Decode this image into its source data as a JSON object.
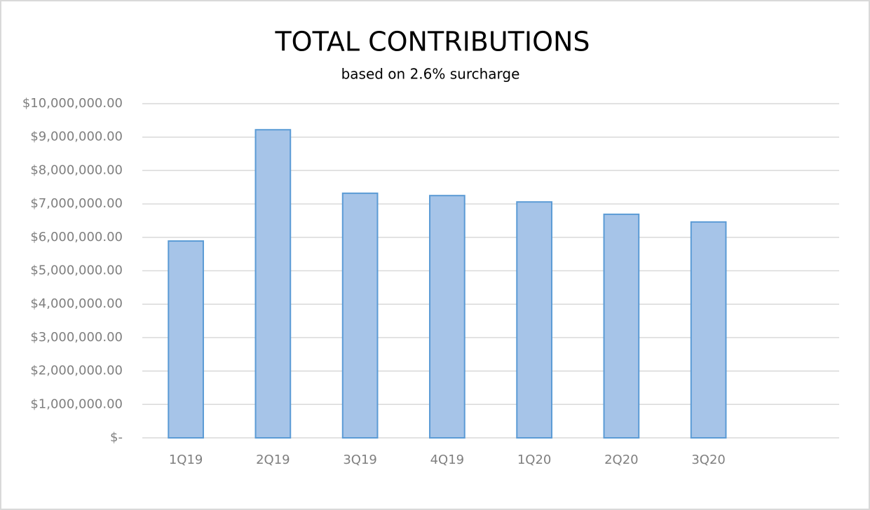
{
  "chart_data": {
    "type": "bar",
    "title": "TOTAL CONTRIBUTIONS",
    "subtitle": "based on 2.6% surcharge",
    "categories": [
      "1Q19",
      "2Q19",
      "3Q19",
      "4Q19",
      "1Q20",
      "2Q20",
      "3Q20",
      null
    ],
    "values": [
      5890000,
      9220000,
      7320000,
      7250000,
      7060000,
      6690000,
      6460000,
      null
    ],
    "color": "#a6c4e8",
    "edgecolor": "#5b9bd5",
    "ylim": [
      0,
      10000000
    ],
    "yticks": [
      {
        "value": 0,
        "label": "$-"
      },
      {
        "value": 1000000,
        "label": "$1,000,000.00"
      },
      {
        "value": 2000000,
        "label": "$2,000,000.00"
      },
      {
        "value": 3000000,
        "label": "$3,000,000.00"
      },
      {
        "value": 4000000,
        "label": "$4,000,000.00"
      },
      {
        "value": 5000000,
        "label": "$5,000,000.00"
      },
      {
        "value": 6000000,
        "label": "$6,000,000.00"
      },
      {
        "value": 7000000,
        "label": "$7,000,000.00"
      },
      {
        "value": 8000000,
        "label": "$8,000,000.00"
      },
      {
        "value": 9000000,
        "label": "$9,000,000.00"
      },
      {
        "value": 10000000,
        "label": "$10,000,000.00"
      }
    ],
    "grid": true
  }
}
